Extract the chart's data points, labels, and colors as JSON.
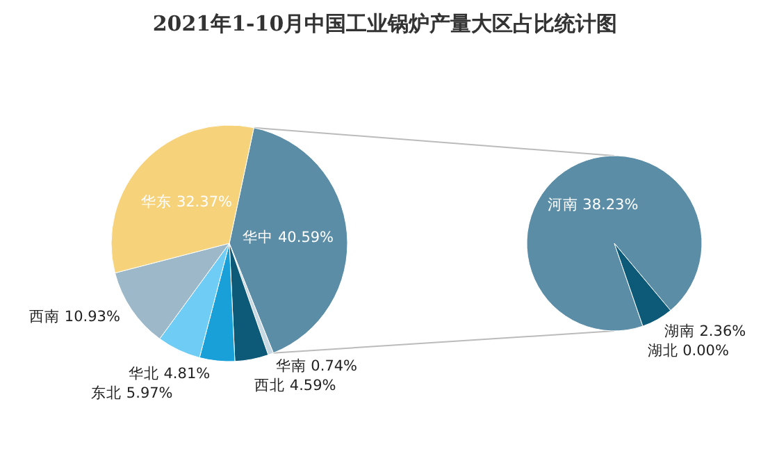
{
  "chart_data": [
    {
      "type": "pie",
      "title": "2021年1-10月中国工业锅炉产量大区占比统计图",
      "categories": [
        "华中",
        "华南",
        "西北",
        "华北",
        "东北",
        "西南",
        "华东"
      ],
      "values": [
        40.59,
        0.74,
        4.59,
        4.81,
        5.97,
        10.93,
        32.37
      ],
      "value_labels": [
        "40.59%",
        "0.74%",
        "4.59%",
        "4.81%",
        "5.97%",
        "10.93%",
        "32.37%"
      ],
      "colors": [
        "#5b8ea6",
        "#c8d9e3",
        "#0d5a78",
        "#1aa0d8",
        "#6fcdf5",
        "#9db9c9",
        "#f6d27b"
      ]
    },
    {
      "type": "pie",
      "categories": [
        "河南",
        "湖南",
        "湖北"
      ],
      "values": [
        38.23,
        2.36,
        0.0
      ],
      "value_labels": [
        "38.23%",
        "2.36%",
        "0.00%"
      ],
      "colors": [
        "#5b8ea6",
        "#0d5a78",
        "#c8d9e3"
      ]
    }
  ]
}
